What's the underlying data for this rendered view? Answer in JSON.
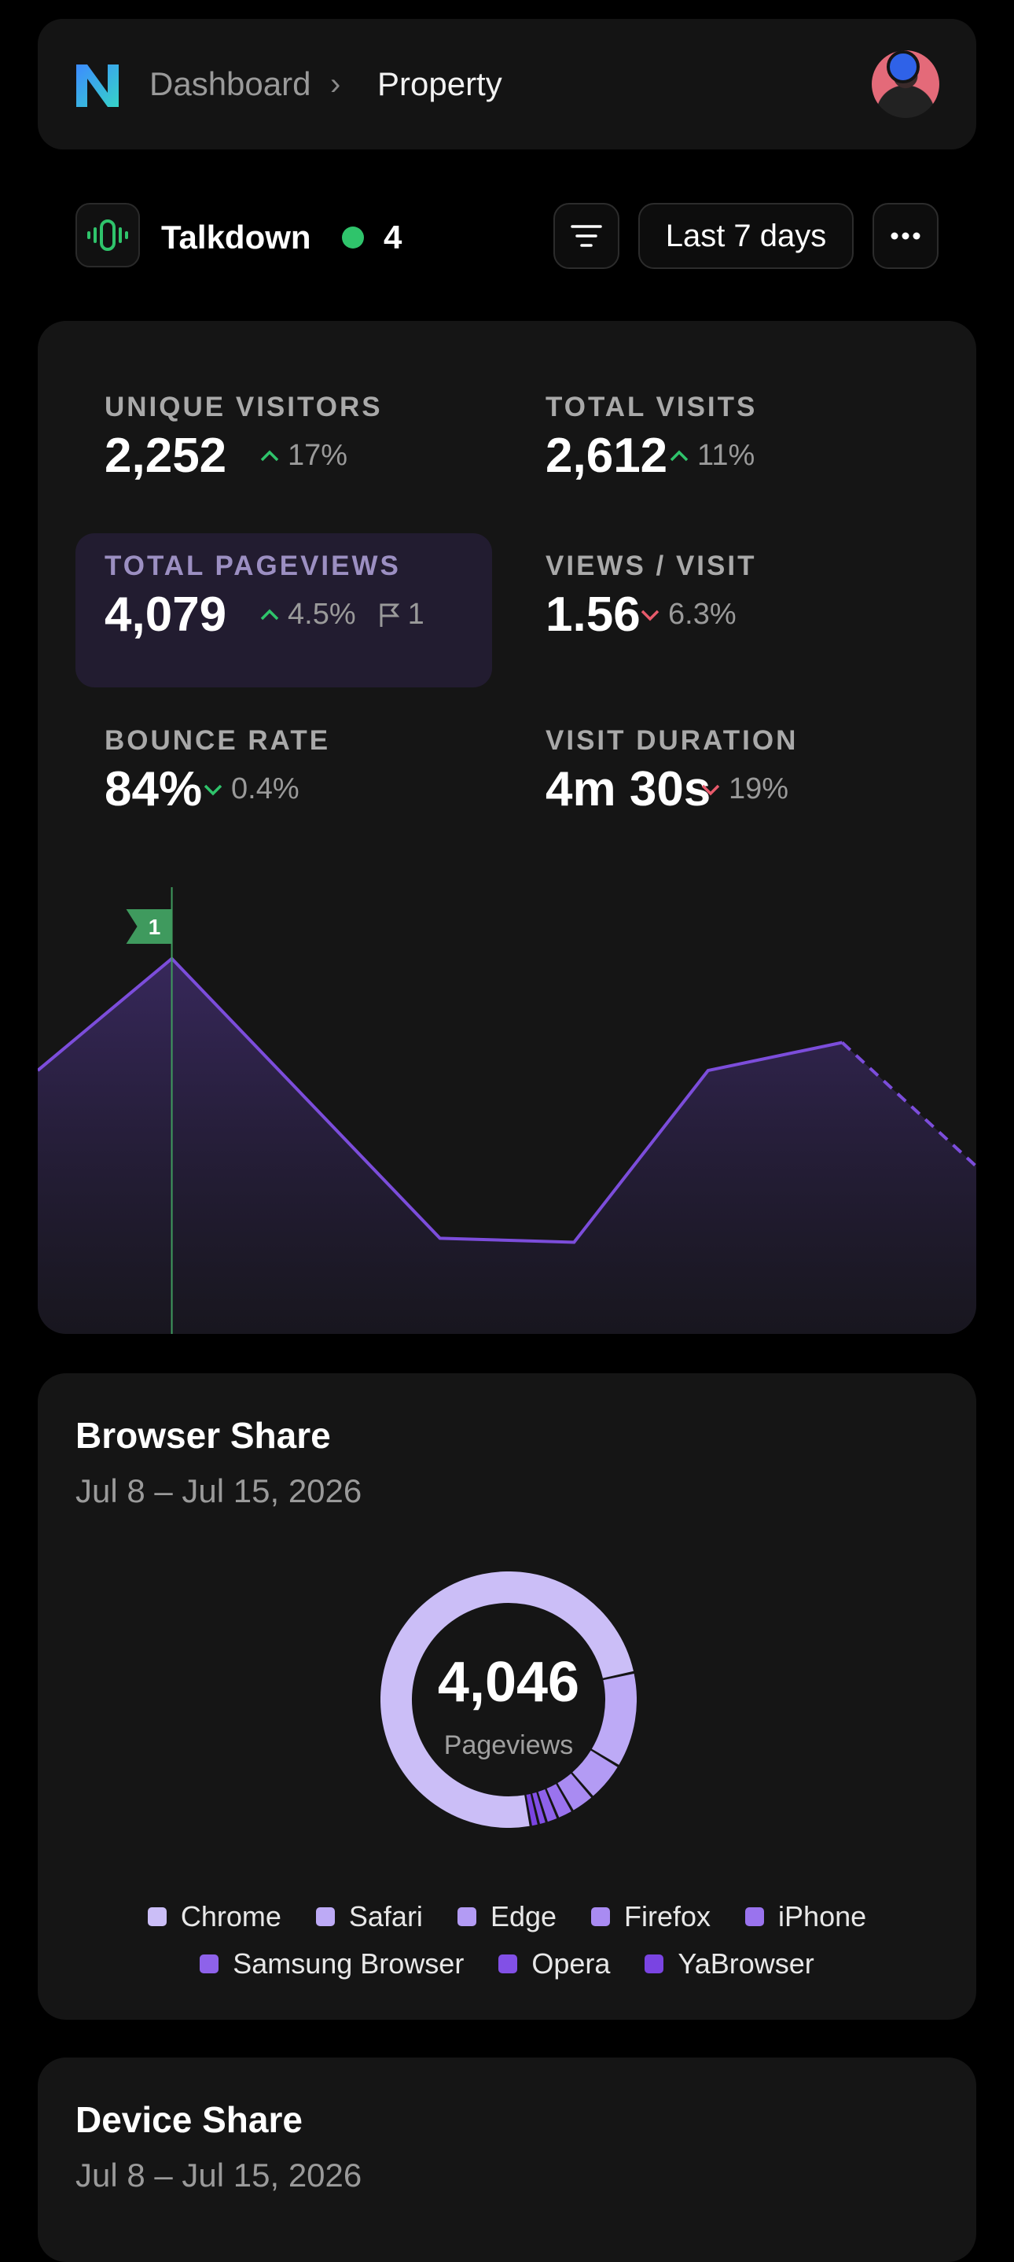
{
  "header": {
    "breadcrumb": [
      "Dashboard",
      "Property"
    ],
    "breadcrumb_separator": "›",
    "logo_icon": "n-logo-icon",
    "avatar_icon": "user-avatar"
  },
  "site": {
    "name": "Talkdown",
    "live_count": "4",
    "range_label": "Last 7 days",
    "accent": "#2fc46b"
  },
  "metrics": [
    {
      "label": "UNIQUE VISITORS",
      "value": "2,252",
      "change": "17%",
      "direction": "up"
    },
    {
      "label": "TOTAL VISITS",
      "value": "2,612",
      "change": "11%",
      "direction": "up"
    },
    {
      "label": "TOTAL PAGEVIEWS",
      "value": "4,079",
      "change": "4.5%",
      "direction": "up",
      "annotations": "1",
      "active": true
    },
    {
      "label": "VIEWS / VISIT",
      "value": "1.56",
      "change": "6.3%",
      "direction": "down"
    },
    {
      "label": "BOUNCE RATE",
      "value": "84%",
      "change": "0.4%",
      "direction": "down-good"
    },
    {
      "label": "VISIT DURATION",
      "value": "4m 30s",
      "change": "19%",
      "direction": "down"
    }
  ],
  "chart_data": {
    "type": "area",
    "values": [
      0.62,
      0.9,
      0.55,
      0.2,
      0.19,
      0.62,
      0.69,
      0.38
    ],
    "dashed_last_segment": true,
    "annotation": {
      "label": "1",
      "index": 1
    },
    "line_color": "#7c4ddb"
  },
  "browser": {
    "title": "Browser Share",
    "date_range": "Jul 8 – Jul 15, 2026",
    "total": "4,046",
    "total_label": "Pageviews",
    "legend": [
      {
        "name": "Chrome",
        "color": "#cbbef7"
      },
      {
        "name": "Safari",
        "color": "#bdaaf6"
      },
      {
        "name": "Edge",
        "color": "#b39bf4"
      },
      {
        "name": "Firefox",
        "color": "#a98bf2"
      },
      {
        "name": "iPhone",
        "color": "#9a73ee"
      },
      {
        "name": "Samsung Browser",
        "color": "#8e62ea"
      },
      {
        "name": "Opera",
        "color": "#8250e6"
      },
      {
        "name": "YaBrowser",
        "color": "#7a44e2"
      }
    ],
    "slices": [
      0.74,
      0.12,
      0.05,
      0.03,
      0.02,
      0.015,
      0.01,
      0.01
    ]
  },
  "device": {
    "title": "Device Share",
    "date_range": "Jul 8 – Jul 15, 2026"
  }
}
